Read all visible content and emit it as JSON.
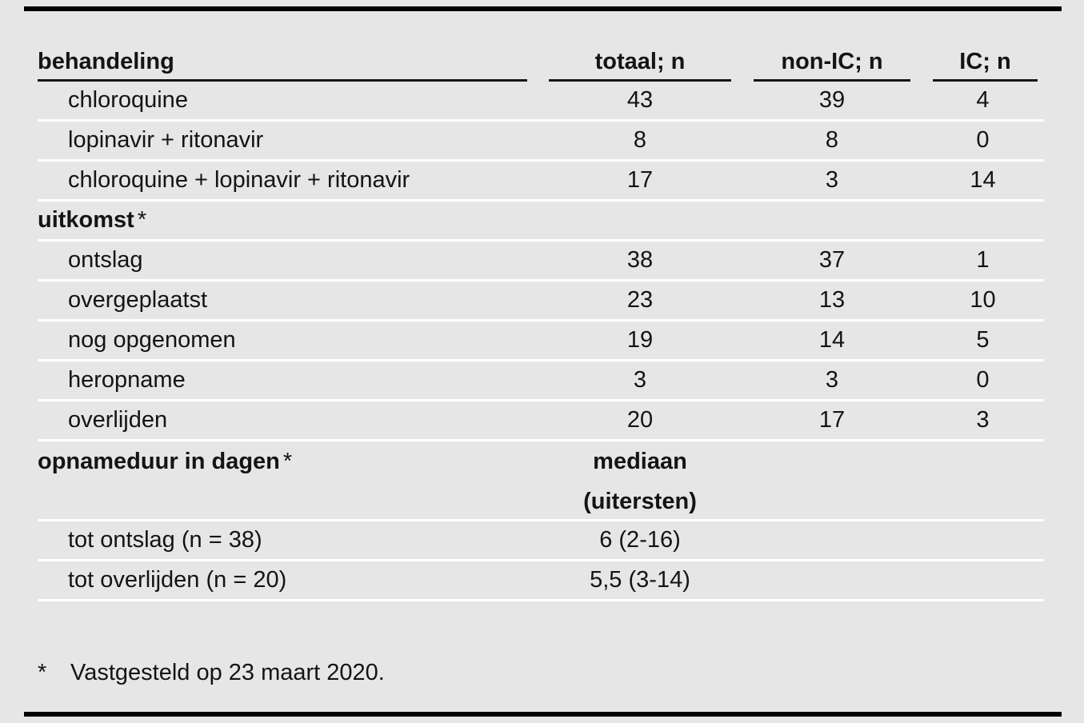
{
  "colors": {
    "background": "#e6e6e6",
    "text": "#141414",
    "top_bottom_rule": "#000000",
    "header_underline": "#151515",
    "row_separator": "#ffffff"
  },
  "table": {
    "header": {
      "col_treatment": "behandeling",
      "col_total": "totaal; n",
      "col_non_ic": "non-IC; n",
      "col_ic": "IC; n"
    },
    "treatment_rows": [
      {
        "label": "chloroquine",
        "totaal": "43",
        "non_ic": "39",
        "ic": "4"
      },
      {
        "label": "lopinavir + ritonavir",
        "totaal": "8",
        "non_ic": "8",
        "ic": "0"
      },
      {
        "label": "chloroquine + lopinavir + ritonavir",
        "totaal": "17",
        "non_ic": "3",
        "ic": "14"
      }
    ],
    "outcome_section": {
      "title": "uitkomst",
      "marker": "*"
    },
    "outcome_rows": [
      {
        "label": "ontslag",
        "totaal": "38",
        "non_ic": "37",
        "ic": "1"
      },
      {
        "label": "overgeplaatst",
        "totaal": "23",
        "non_ic": "13",
        "ic": "10"
      },
      {
        "label": "nog opgenomen",
        "totaal": "19",
        "non_ic": "14",
        "ic": "5"
      },
      {
        "label": "heropname",
        "totaal": "3",
        "non_ic": "3",
        "ic": "0"
      },
      {
        "label": "overlijden",
        "totaal": "20",
        "non_ic": "17",
        "ic": "3"
      }
    ],
    "duration_section": {
      "title": "opnameduur in dagen",
      "marker": "*",
      "subheader_line1": "mediaan",
      "subheader_line2": "(uitersten)"
    },
    "duration_rows": [
      {
        "label": "tot ontslag (n = 38)",
        "median": "6 (2-16)"
      },
      {
        "label": "tot overlijden (n = 20)",
        "median": "5,5 (3-14)"
      }
    ],
    "footnote": {
      "marker": "*",
      "text": "Vastgesteld op 23 maart 2020."
    }
  }
}
